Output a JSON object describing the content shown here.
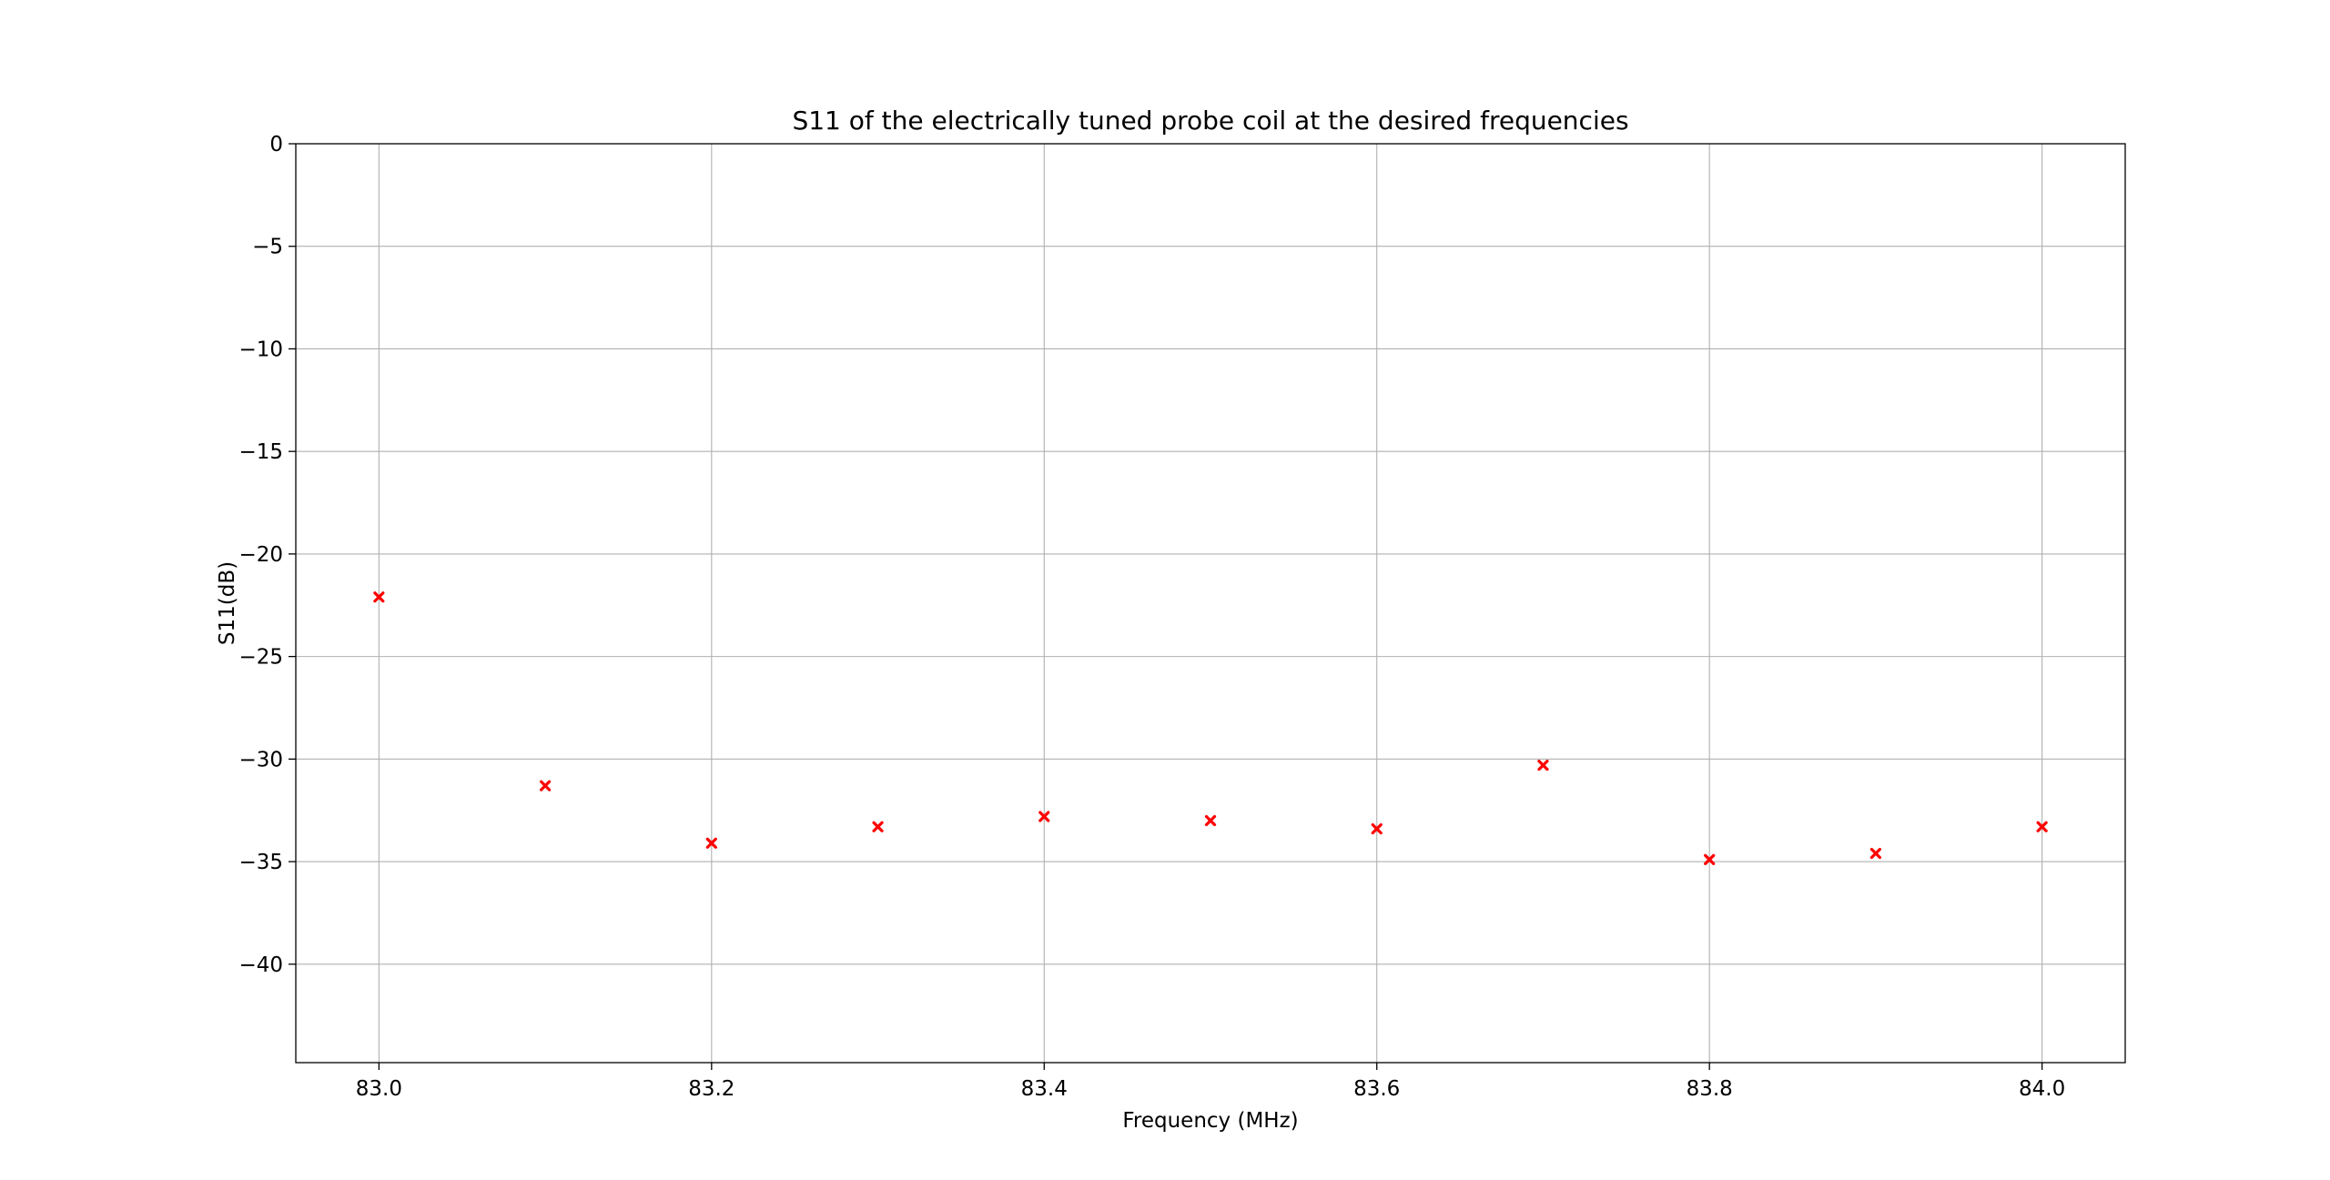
{
  "chart_data": {
    "type": "scatter",
    "title": "S11 of the electrically tuned probe coil at the desired frequencies",
    "xlabel": "Frequency (MHz)",
    "ylabel": "S11(dB)",
    "xlim": [
      82.95,
      84.05
    ],
    "ylim": [
      -44.8,
      0
    ],
    "x_ticks": [
      83.0,
      83.2,
      83.4,
      83.6,
      83.8,
      84.0
    ],
    "x_tick_labels": [
      "83.0",
      "83.2",
      "83.4",
      "83.6",
      "83.8",
      "84.0"
    ],
    "y_ticks": [
      0,
      -5,
      -10,
      -15,
      -20,
      -25,
      -30,
      -35,
      -40
    ],
    "y_tick_labels": [
      "0",
      "−5",
      "−10",
      "−15",
      "−20",
      "−25",
      "−30",
      "−35",
      "−40"
    ],
    "grid": true,
    "marker": "x",
    "marker_color": "#ff0000",
    "series": [
      {
        "x": [
          83.0,
          83.1,
          83.2,
          83.3,
          83.4,
          83.5,
          83.6,
          83.7,
          83.8,
          83.9,
          84.0
        ],
        "values": [
          -22.1,
          -31.3,
          -34.1,
          -33.3,
          -32.8,
          -33.0,
          -33.4,
          -30.3,
          -34.9,
          -34.6,
          -33.3
        ]
      }
    ]
  }
}
